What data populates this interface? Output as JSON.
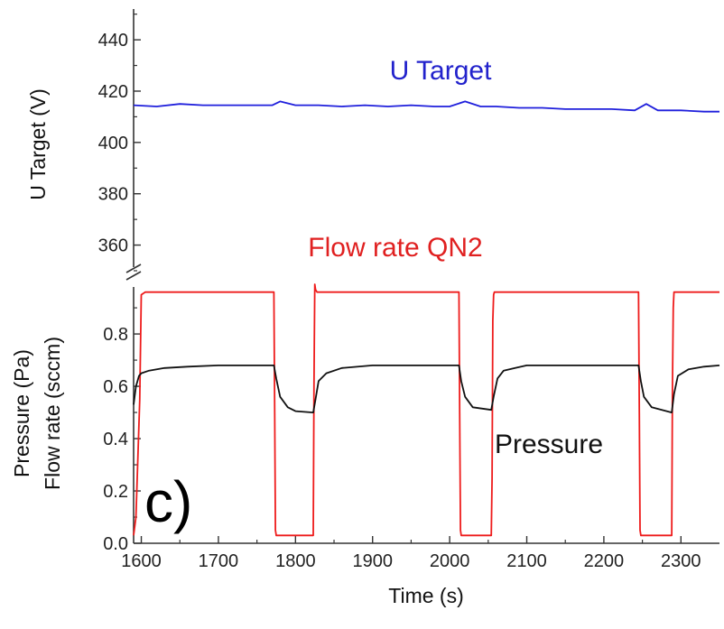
{
  "chart_data": [
    {
      "type": "line",
      "panel": "upper",
      "ylabel": "U Target (V)",
      "ylim": [
        350,
        452
      ],
      "y_ticks": [
        360,
        380,
        400,
        420,
        440
      ],
      "xlim": [
        1590,
        2350
      ],
      "grid": false,
      "annotations": [
        {
          "text": "U Target",
          "color": "#2222cc"
        }
      ],
      "series": [
        {
          "name": "U Target",
          "color": "#1f1fdc",
          "x": [
            1590,
            1620,
            1650,
            1680,
            1710,
            1740,
            1770,
            1780,
            1800,
            1830,
            1860,
            1890,
            1920,
            1950,
            1980,
            2000,
            2020,
            2040,
            2060,
            2090,
            2120,
            2150,
            2180,
            2210,
            2240,
            2255,
            2270,
            2300,
            2330,
            2350
          ],
          "values": [
            414.5,
            414,
            415,
            414.5,
            414.5,
            414.5,
            414.5,
            416,
            414.5,
            414.5,
            414,
            414.5,
            414,
            414.5,
            414,
            414,
            416,
            414,
            414,
            413.5,
            413.5,
            413,
            413,
            413,
            412.5,
            415,
            412.5,
            412.5,
            412,
            412
          ]
        }
      ]
    },
    {
      "type": "line",
      "panel": "lower",
      "xlabel": "Time (s)",
      "ylabel": "Pressure (Pa)",
      "ylabel2": "Flow rate (sccm)",
      "ylim": [
        0,
        0.99
      ],
      "y_ticks": [
        "0.0",
        "0.2",
        "0.4",
        "0.6",
        "0.8"
      ],
      "xlim": [
        1590,
        2350
      ],
      "x_ticks": [
        1600,
        1700,
        1800,
        1900,
        2000,
        2100,
        2200,
        2300
      ],
      "grid": false,
      "panel_label": "c)",
      "annotations": [
        {
          "text": "Flow rate QN2",
          "color": "#e02020"
        },
        {
          "text": "Pressure",
          "color": "#111111"
        }
      ],
      "series": [
        {
          "name": "Flow rate QN2",
          "color": "#ee1c1c",
          "x": [
            1590,
            1593,
            1598,
            1600,
            1605,
            1700,
            1772,
            1773,
            1774,
            1775,
            1823,
            1824,
            1825,
            1826,
            1828,
            1835,
            1850,
            1900,
            2012,
            2013,
            2014,
            2015,
            2054,
            2055,
            2056,
            2057,
            2058,
            2060,
            2063,
            2100,
            2200,
            2245,
            2246,
            2247,
            2248,
            2288,
            2289,
            2290,
            2291,
            2300,
            2350
          ],
          "values": [
            0.03,
            0.1,
            0.55,
            0.95,
            0.96,
            0.96,
            0.96,
            0.5,
            0.05,
            0.03,
            0.03,
            0.6,
            0.99,
            0.97,
            0.96,
            0.96,
            0.96,
            0.96,
            0.96,
            0.5,
            0.05,
            0.03,
            0.03,
            0.25,
            0.85,
            0.95,
            0.96,
            0.96,
            0.96,
            0.96,
            0.96,
            0.96,
            0.5,
            0.05,
            0.03,
            0.03,
            0.6,
            0.9,
            0.96,
            0.96,
            0.96
          ]
        },
        {
          "name": "Pressure",
          "color": "#111111",
          "x": [
            1590,
            1593,
            1597,
            1600,
            1610,
            1630,
            1660,
            1700,
            1772,
            1775,
            1780,
            1790,
            1800,
            1823,
            1826,
            1830,
            1840,
            1860,
            1900,
            2012,
            2015,
            2020,
            2030,
            2054,
            2057,
            2062,
            2070,
            2085,
            2100,
            2245,
            2248,
            2252,
            2262,
            2288,
            2291,
            2296,
            2310,
            2330,
            2350
          ],
          "values": [
            0.53,
            0.6,
            0.64,
            0.65,
            0.66,
            0.67,
            0.675,
            0.68,
            0.68,
            0.63,
            0.56,
            0.52,
            0.505,
            0.5,
            0.55,
            0.62,
            0.65,
            0.67,
            0.68,
            0.68,
            0.62,
            0.56,
            0.52,
            0.51,
            0.56,
            0.63,
            0.66,
            0.67,
            0.68,
            0.68,
            0.62,
            0.56,
            0.52,
            0.5,
            0.57,
            0.64,
            0.665,
            0.675,
            0.68
          ]
        }
      ]
    }
  ]
}
